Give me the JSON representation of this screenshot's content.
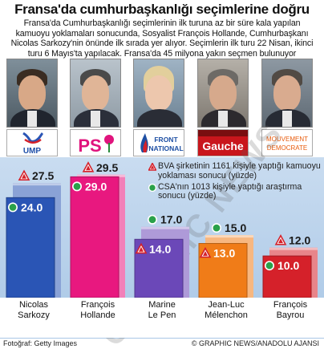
{
  "title": "Fransa'da cumhurbaşkanlığı seçimlerine doğru",
  "intro": [
    "Fransa'da Cumhurbaşkanlığı seçimlerinin ilk turuna az bir süre kala yapılan",
    "kamuoyu yoklamaları sonucunda, Sosyalist François Hollande, Cumhurbaşkanı",
    "Nicolas Sarkozy'nin önünde ilk sırada yer alıyor. Seçimlerin ilk turu 22 Nisan, ikinci",
    "turu 6 Mayıs'ta yapılacak. Fransa'da 45 milyona yakın seçmen bulunuyor"
  ],
  "legend": {
    "bva": "BVA şirketinin 1161 kişiyle yaptığı kamuoyu yoklaması sonucu (yüzde)",
    "csa": "CSA'nın 1013 kişiyle yaptığı araştırma sonucu (yüzde)"
  },
  "parties": [
    {
      "logo": "UMP",
      "color": "#1f4fa8"
    },
    {
      "logo": "PS",
      "color": "#e0147d"
    },
    {
      "logo": "FRONT NATIONAL",
      "color": "#1d4fa3"
    },
    {
      "logo": "Gauche",
      "color": "#c9161c"
    },
    {
      "logo": "MOUVEMENT DEMOCRATE",
      "color": "#e85b0c"
    }
  ],
  "footer": {
    "left": "Fotoğraf: Getty Images",
    "right": "© GRAPHIC NEWS/ANADOLU AJANSI"
  },
  "watermark": "GRAPHIC NEWS",
  "chart_data": {
    "type": "bar",
    "categories": [
      "Nicolas Sarkozy",
      "François Hollande",
      "Marine Le Pen",
      "Jean-Luc Mélenchon",
      "François Bayrou"
    ],
    "category_lines": [
      [
        "Nicolas",
        "Sarkozy"
      ],
      [
        "François",
        "Hollande"
      ],
      [
        "Marine",
        "Le Pen"
      ],
      [
        "Jean-Luc",
        "Mélenchon"
      ],
      [
        "François",
        "Bayrou"
      ]
    ],
    "series": [
      {
        "name": "BVA",
        "marker": "triangle",
        "values": [
          27.5,
          29.5,
          14.0,
          13.0,
          12.0
        ]
      },
      {
        "name": "CSA",
        "marker": "circle",
        "values": [
          24.0,
          29.0,
          17.0,
          15.0,
          10.0
        ]
      }
    ],
    "labels": [
      [
        "27.5",
        "29.5",
        "14.0",
        "13.0",
        "12.0"
      ],
      [
        "24.0",
        "29.0",
        "17.0",
        "15.0",
        "10.0"
      ]
    ],
    "colors": [
      "#2a55b5",
      "#e8187f",
      "#6b48b8",
      "#f07c18",
      "#d5212a"
    ],
    "ylim": [
      0,
      31
    ]
  }
}
